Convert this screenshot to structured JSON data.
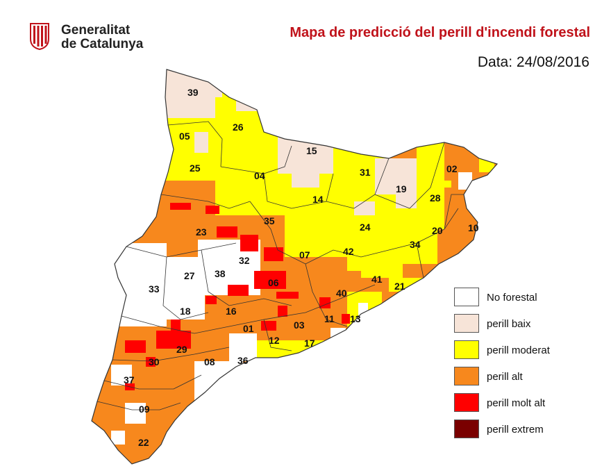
{
  "header": {
    "logo_line1": "Generalitat",
    "logo_line2": "de Catalunya",
    "title": "Mapa de predicció del perill d'incendi forestal",
    "date": "Data: 24/08/2016"
  },
  "colors": {
    "title": "#c0121a",
    "no_forestal": "#ffffff",
    "baix": "#f7e4d8",
    "moderat": "#ffff00",
    "alt": "#f7881d",
    "molt_alt": "#ff0000",
    "extrem": "#7a0000"
  },
  "legend": [
    {
      "key": "no_forestal",
      "label": "No forestal",
      "color": "#ffffff"
    },
    {
      "key": "baix",
      "label": "perill baix",
      "color": "#f7e4d8"
    },
    {
      "key": "moderat",
      "label": "perill moderat",
      "color": "#ffff00"
    },
    {
      "key": "alt",
      "label": "perill alt",
      "color": "#f7881d"
    },
    {
      "key": "molt_alt",
      "label": "perill molt alt",
      "color": "#ff0000"
    },
    {
      "key": "extrem",
      "label": "perill extrem",
      "color": "#7a0000"
    }
  ],
  "zones": {
    "z01": "01",
    "z02": "02",
    "z03": "03",
    "z04": "04",
    "z05": "05",
    "z06": "06",
    "z07": "07",
    "z08": "08",
    "z09": "09",
    "z10": "10",
    "z11": "11",
    "z12": "12",
    "z13": "13",
    "z14": "14",
    "z15": "15",
    "z16": "16",
    "z17": "17",
    "z18": "18",
    "z19": "19",
    "z20": "20",
    "z21": "21",
    "z22": "22",
    "z23": "23",
    "z24": "24",
    "z25": "25",
    "z26": "26",
    "z27": "27",
    "z28": "28",
    "z29": "29",
    "z30": "30",
    "z31": "31",
    "z32": "32",
    "z33": "33",
    "z34": "34",
    "z35": "35",
    "z36": "36",
    "z37": "37",
    "z38": "38",
    "z39": "39",
    "z40": "40",
    "z41": "41",
    "z42": "42"
  }
}
